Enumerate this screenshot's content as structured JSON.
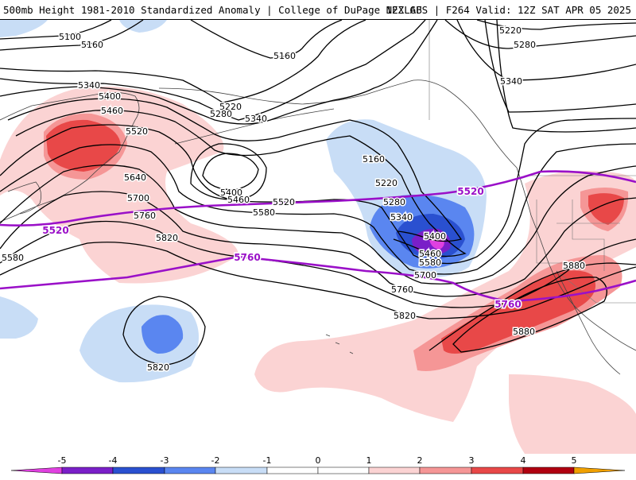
{
  "header": {
    "left": "500mb Height 1981-2010 Standardized Anomaly | College of DuPage NEXLAB",
    "right": "12Z GFS | F264 Valid: 12Z SAT APR 05 2025"
  },
  "colors": {
    "neg5": "#e040e0",
    "neg4": "#7a1fc8",
    "neg3": "#2a50d0",
    "neg2": "#5a86f0",
    "neg1": "#c8ddf6",
    "pos1": "#fbd3d3",
    "pos2": "#f59696",
    "pos3": "#e84848",
    "pos4": "#b00010",
    "pos5": "#f0a000",
    "contour": "#000000",
    "highlight": "#9a10c8"
  },
  "contour_labels": [
    {
      "id": "c5100",
      "text": "5100"
    },
    {
      "id": "c5160a",
      "text": "5160"
    },
    {
      "id": "c5160b",
      "text": "5160"
    },
    {
      "id": "c5160c",
      "text": "5160"
    },
    {
      "id": "c5220a",
      "text": "5220"
    },
    {
      "id": "c5220b",
      "text": "5220"
    },
    {
      "id": "c5220c",
      "text": "5220"
    },
    {
      "id": "c5280a",
      "text": "5280"
    },
    {
      "id": "c5280b",
      "text": "5280"
    },
    {
      "id": "c5280c",
      "text": "5280"
    },
    {
      "id": "c5340a",
      "text": "5340"
    },
    {
      "id": "c5340b",
      "text": "5340"
    },
    {
      "id": "c5340c",
      "text": "5340"
    },
    {
      "id": "c5340d",
      "text": "5340"
    },
    {
      "id": "c5400a",
      "text": "5400"
    },
    {
      "id": "c5400b",
      "text": "5400"
    },
    {
      "id": "c5400c",
      "text": "5400"
    },
    {
      "id": "c5460a",
      "text": "5460"
    },
    {
      "id": "c5460b",
      "text": "5460"
    },
    {
      "id": "c5460c",
      "text": "5460"
    },
    {
      "id": "c5520a",
      "text": "5520"
    },
    {
      "id": "c5520b",
      "text": "5520"
    },
    {
      "id": "c5580a",
      "text": "5580"
    },
    {
      "id": "c5580b",
      "text": "5580"
    },
    {
      "id": "c5580c",
      "text": "5580"
    },
    {
      "id": "c5640",
      "text": "5640"
    },
    {
      "id": "c5700a",
      "text": "5700"
    },
    {
      "id": "c5700b",
      "text": "5700"
    },
    {
      "id": "c5760a",
      "text": "5760"
    },
    {
      "id": "c5760b",
      "text": "5760"
    },
    {
      "id": "c5820a",
      "text": "5820"
    },
    {
      "id": "c5820b",
      "text": "5820"
    },
    {
      "id": "c5820c",
      "text": "5820"
    },
    {
      "id": "c5880a",
      "text": "5880"
    },
    {
      "id": "c5880b",
      "text": "5880"
    }
  ],
  "highlight_labels": [
    {
      "id": "h5520a",
      "text": "5520"
    },
    {
      "id": "h5520b",
      "text": "5520"
    },
    {
      "id": "h5760a",
      "text": "5760"
    },
    {
      "id": "h5760b",
      "text": "5760"
    }
  ],
  "colorbar": {
    "ticks": [
      "-5",
      "-4",
      "-3",
      "-2",
      "-1",
      "0",
      "1",
      "2",
      "3",
      "4",
      "5"
    ]
  }
}
